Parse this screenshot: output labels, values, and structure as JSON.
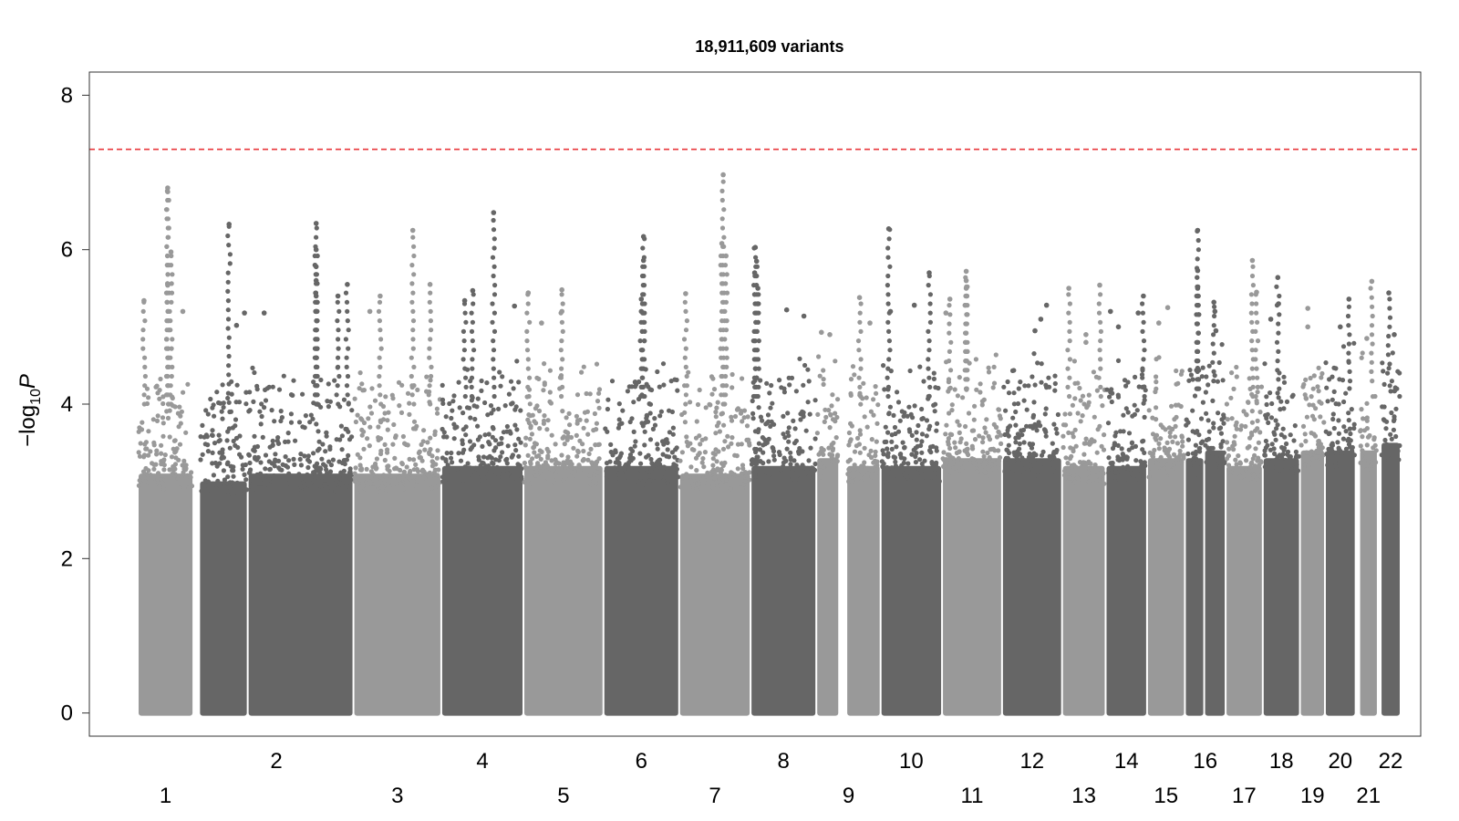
{
  "chart_data": {
    "type": "scatter",
    "subtype": "manhattan",
    "title": "18,911,609 variants",
    "xlabel": "",
    "ylabel": "−log10P",
    "ylabel_parts": {
      "prefix": "−log",
      "sub": "10",
      "var": "P"
    },
    "ylim": [
      -0.3,
      8.3
    ],
    "yticks": [
      0,
      2,
      4,
      6,
      8
    ],
    "significance_line": {
      "y": 7.3,
      "color": "#e8353a",
      "style": "dashed"
    },
    "colors": {
      "light": "#999999",
      "dark": "#666666"
    },
    "grid": false,
    "legend": "none",
    "chromosomes": [
      {
        "label": "1",
        "start": 0.0,
        "end": 7.8,
        "base": 3.6,
        "spread": 0.25,
        "peaks": [
          [
            0.54,
            6.8
          ],
          [
            0.54,
            6.75
          ],
          [
            0.6,
            5.97
          ],
          [
            0.54,
            5.54
          ],
          [
            0.1,
            5.34
          ],
          [
            0.82,
            5.2
          ]
        ]
      },
      {
        "label": "2",
        "start": 8.6,
        "end": 15.4,
        "base": 3.5,
        "spread": 0.25,
        "peaks": [
          [
            0.62,
            6.33
          ],
          [
            0.95,
            5.18
          ],
          [
            0.78,
            5.02
          ]
        ]
      },
      {
        "label": "2",
        "start": 15.4,
        "end": 30.2,
        "base": 3.6,
        "spread": 0.3,
        "peaks": [
          [
            0.65,
            6.34
          ],
          [
            0.65,
            6.0
          ],
          [
            0.65,
            5.78
          ],
          [
            0.65,
            5.6
          ],
          [
            0.65,
            5.4
          ],
          [
            0.65,
            5.2
          ],
          [
            0.95,
            5.55
          ],
          [
            0.86,
            5.4
          ],
          [
            0.15,
            5.18
          ]
        ]
      },
      {
        "label": "3",
        "start": 30.2,
        "end": 42.5,
        "base": 3.6,
        "spread": 0.3,
        "peaks": [
          [
            0.68,
            6.25
          ],
          [
            0.88,
            5.55
          ],
          [
            0.3,
            5.4
          ],
          [
            0.18,
            5.2
          ]
        ]
      },
      {
        "label": "4",
        "start": 42.5,
        "end": 54.0,
        "base": 3.7,
        "spread": 0.3,
        "peaks": [
          [
            0.64,
            6.48
          ],
          [
            0.38,
            5.47
          ],
          [
            0.28,
            5.34
          ],
          [
            0.9,
            5.27
          ]
        ]
      },
      {
        "label": "5",
        "start": 54.0,
        "end": 65.2,
        "base": 3.7,
        "spread": 0.3,
        "peaks": [
          [
            0.48,
            5.48
          ],
          [
            0.05,
            5.44
          ],
          [
            0.48,
            5.2
          ],
          [
            0.22,
            5.05
          ]
        ]
      },
      {
        "label": "6",
        "start": 65.2,
        "end": 75.8,
        "base": 3.7,
        "spread": 0.3,
        "peaks": [
          [
            0.53,
            6.17
          ],
          [
            0.53,
            5.86
          ],
          [
            0.5,
            5.36
          ],
          [
            0.5,
            5.2
          ]
        ]
      },
      {
        "label": "7",
        "start": 75.8,
        "end": 85.8,
        "base": 3.6,
        "spread": 0.3,
        "peaks": [
          [
            0.62,
            6.97
          ],
          [
            0.6,
            6.08
          ],
          [
            0.66,
            5.92
          ],
          [
            0.08,
            5.43
          ]
        ]
      },
      {
        "label": "8",
        "start": 85.8,
        "end": 95.0,
        "base": 3.7,
        "spread": 0.3,
        "peaks": [
          [
            0.06,
            6.03
          ],
          [
            0.08,
            5.85
          ],
          [
            0.05,
            5.7
          ],
          [
            0.1,
            5.5
          ],
          [
            0.1,
            5.3
          ],
          [
            0.55,
            5.22
          ],
          [
            0.82,
            5.14
          ]
        ]
      },
      {
        "label": "9",
        "start": 95.0,
        "end": 98.2,
        "base": 3.8,
        "spread": 0.3,
        "peaks": [
          [
            0.2,
            4.93
          ],
          [
            0.6,
            4.9
          ]
        ]
      },
      {
        "label": "9",
        "start": 99.2,
        "end": 104.0,
        "base": 3.7,
        "spread": 0.3,
        "peaks": [
          [
            0.38,
            5.38
          ],
          [
            0.7,
            5.05
          ]
        ]
      },
      {
        "label": "10",
        "start": 104.0,
        "end": 112.6,
        "base": 3.7,
        "spread": 0.3,
        "peaks": [
          [
            0.12,
            6.27
          ],
          [
            0.8,
            5.7
          ],
          [
            0.55,
            5.28
          ],
          [
            0.15,
            5.2
          ]
        ]
      },
      {
        "label": "11",
        "start": 112.6,
        "end": 121.0,
        "base": 3.8,
        "spread": 0.3,
        "peaks": [
          [
            0.4,
            5.72
          ],
          [
            0.4,
            5.6
          ],
          [
            0.4,
            5.5
          ],
          [
            0.4,
            5.4
          ],
          [
            0.12,
            5.36
          ],
          [
            0.05,
            5.18
          ]
        ]
      },
      {
        "label": "12",
        "start": 121.0,
        "end": 129.4,
        "base": 3.8,
        "spread": 0.3,
        "peaks": [
          [
            0.75,
            5.28
          ],
          [
            0.65,
            5.1
          ],
          [
            0.55,
            4.95
          ]
        ]
      },
      {
        "label": "13",
        "start": 129.4,
        "end": 135.5,
        "base": 3.7,
        "spread": 0.3,
        "peaks": [
          [
            0.14,
            5.5
          ],
          [
            0.88,
            5.54
          ],
          [
            0.55,
            4.9
          ],
          [
            0.55,
            4.8
          ]
        ]
      },
      {
        "label": "14",
        "start": 135.5,
        "end": 141.3,
        "base": 3.7,
        "spread": 0.3,
        "peaks": [
          [
            0.93,
            5.4
          ],
          [
            0.8,
            5.18
          ],
          [
            0.1,
            5.2
          ],
          [
            0.3,
            5.0
          ]
        ]
      },
      {
        "label": "15",
        "start": 141.3,
        "end": 146.6,
        "base": 3.8,
        "spread": 0.3,
        "peaks": [
          [
            0.55,
            5.25
          ],
          [
            0.3,
            5.05
          ]
        ]
      },
      {
        "label": "16",
        "start": 146.6,
        "end": 149.3,
        "base": 3.8,
        "spread": 0.3,
        "peaks": [
          [
            0.68,
            6.25
          ],
          [
            0.68,
            5.73
          ],
          [
            0.68,
            5.5
          ],
          [
            0.68,
            5.4
          ]
        ]
      },
      {
        "label": "16",
        "start": 149.3,
        "end": 152.3,
        "base": 3.9,
        "spread": 0.3,
        "peaks": [
          [
            0.45,
            5.32
          ],
          [
            0.5,
            5.2
          ],
          [
            0.55,
            4.95
          ]
        ]
      },
      {
        "label": "17",
        "start": 152.3,
        "end": 157.5,
        "base": 3.7,
        "spread": 0.3,
        "peaks": [
          [
            0.73,
            5.86
          ],
          [
            0.85,
            5.45
          ]
        ]
      },
      {
        "label": "18",
        "start": 157.5,
        "end": 162.7,
        "base": 3.8,
        "spread": 0.3,
        "peaks": [
          [
            0.4,
            5.64
          ],
          [
            0.42,
            5.3
          ],
          [
            0.2,
            5.1
          ]
        ]
      },
      {
        "label": "19",
        "start": 162.7,
        "end": 166.2,
        "base": 3.9,
        "spread": 0.3,
        "peaks": [
          [
            0.3,
            5.24
          ],
          [
            0.3,
            5.0
          ]
        ]
      },
      {
        "label": "20",
        "start": 166.2,
        "end": 170.5,
        "base": 3.9,
        "spread": 0.3,
        "peaks": [
          [
            0.8,
            5.36
          ],
          [
            0.5,
            5.0
          ]
        ]
      },
      {
        "label": "21",
        "start": 171.0,
        "end": 173.6,
        "base": 3.9,
        "spread": 0.3,
        "peaks": [
          [
            0.7,
            5.59
          ],
          [
            0.4,
            4.85
          ]
        ]
      },
      {
        "label": "22",
        "start": 174.0,
        "end": 176.8,
        "base": 4.0,
        "spread": 0.3,
        "peaks": [
          [
            0.4,
            5.44
          ],
          [
            0.7,
            4.9
          ]
        ]
      }
    ],
    "x_tick_labels": [
      {
        "label": "1",
        "x": 6.3,
        "row": 2
      },
      {
        "label": "2",
        "x": 20.1,
        "row": 1
      },
      {
        "label": "3",
        "x": 31.6,
        "row": 2
      },
      {
        "label": "4",
        "x": 43.8,
        "row": 1
      },
      {
        "label": "5",
        "x": 54.9,
        "row": 2
      },
      {
        "label": "6",
        "x": 65.4,
        "row": 1
      },
      {
        "label": "7",
        "x": 75.2,
        "row": 2
      },
      {
        "label": "8",
        "x": 84.6,
        "row": 1
      },
      {
        "label": "9",
        "x": 93.4,
        "row": 2
      },
      {
        "label": "10",
        "x": 97.5,
        "row": 1
      },
      {
        "label": "11",
        "x": 101.6,
        "row": 2
      },
      {
        "label": "12",
        "x": 109.6,
        "row": 1
      },
      {
        "label": "13",
        "x": 117.1,
        "row": 2
      },
      {
        "label": "14",
        "x": 123.2,
        "row": 1
      },
      {
        "label": "15",
        "x": 128.8,
        "row": 2
      },
      {
        "label": "16",
        "x": 134.1,
        "row": 1
      },
      {
        "label": "17",
        "x": 139.2,
        "row": 2
      },
      {
        "label": "18",
        "x": 144.3,
        "row": 1
      },
      {
        "label": "19",
        "x": 148.6,
        "row": 2
      },
      {
        "label": "20",
        "x": 152.6,
        "row": 1
      },
      {
        "label": "21",
        "x": 156.2,
        "row": 2
      },
      {
        "label": "22",
        "x": 159.6,
        "row": 1
      }
    ],
    "xlim": [
      -8.5,
      167.0
    ]
  }
}
